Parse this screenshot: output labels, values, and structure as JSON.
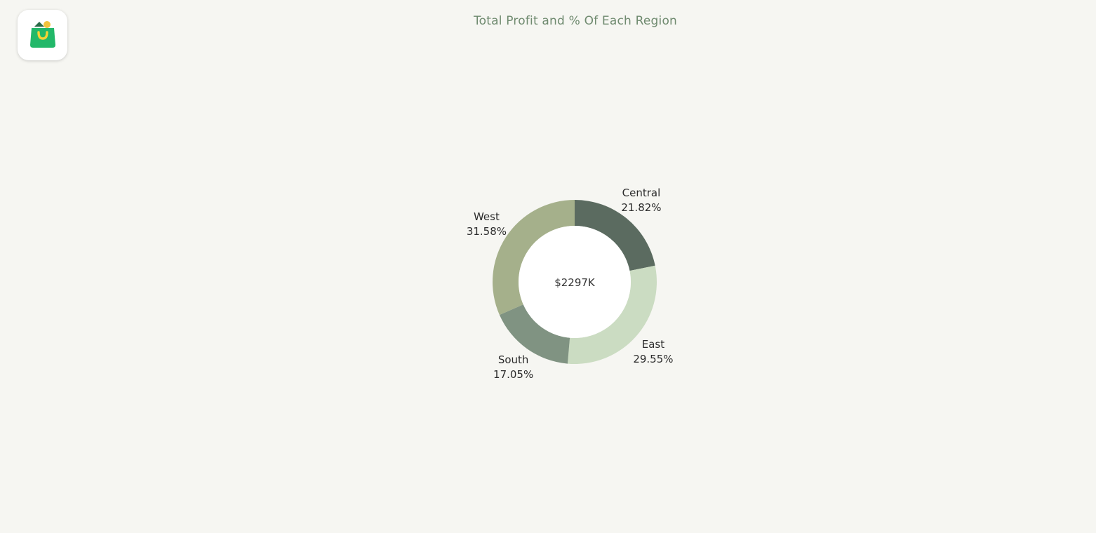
{
  "app": {
    "logo_icon": "shopping-bag-icon"
  },
  "colors": {
    "background": "#f6f6f2",
    "title": "#6f8a6f",
    "Central": "#5b6b60",
    "East": "#cbdcc2",
    "South": "#809382",
    "West": "#a5b08b"
  },
  "chart_data": {
    "type": "pie",
    "title": "Total Profit and % Of Each Region",
    "center_label": "$2297K",
    "categories": [
      "Central",
      "East",
      "South",
      "West"
    ],
    "values": [
      21.82,
      29.55,
      17.05,
      31.58
    ],
    "value_labels": [
      "21.82%",
      "29.55%",
      "17.05%",
      "31.58%"
    ],
    "donut": true,
    "legend": "none"
  }
}
